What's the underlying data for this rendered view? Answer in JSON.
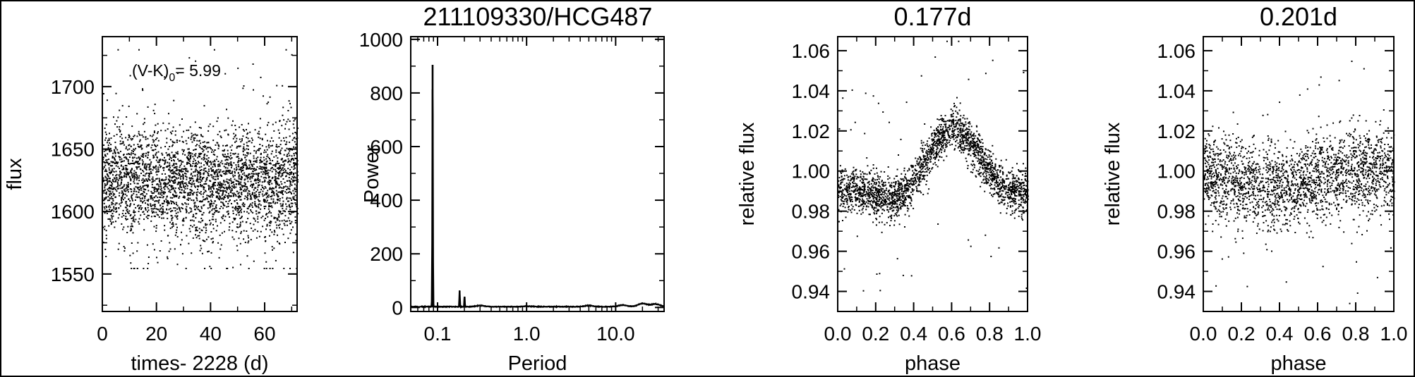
{
  "figure": {
    "title": "211109330/HCG487",
    "note_main": "(V-K)",
    "note_sub": "0",
    "note_value": "= 5.99"
  },
  "chart_data": [
    {
      "id": "lightcurve",
      "type": "scatter",
      "title": "",
      "xlabel": "times- 2228 (d)",
      "ylabel": "flux",
      "xlim": [
        0,
        72
      ],
      "ylim": [
        1520,
        1740
      ],
      "x_ticks": [
        0,
        20,
        40,
        60
      ],
      "x_tick_labels": [
        "0",
        "20",
        "40",
        "60"
      ],
      "y_ticks": [
        1550,
        1600,
        1650,
        1700
      ],
      "y_tick_labels": [
        "1550",
        "1600",
        "1650",
        "1700"
      ],
      "series": [
        {
          "n_points": 3300,
          "x_range": [
            0,
            72
          ],
          "y_center": 1625,
          "y_scatter": 22,
          "y_min": 1555,
          "y_max": 1730
        }
      ]
    },
    {
      "id": "periodogram",
      "type": "line",
      "title": "",
      "xlabel": "Period",
      "ylabel": "Power",
      "x_log": true,
      "xlim": [
        0.05,
        35
      ],
      "ylim": [
        -15,
        1010
      ],
      "x_ticks": [
        0.1,
        1.0,
        10.0
      ],
      "x_tick_labels": [
        "0.1",
        "1.0",
        "10.0"
      ],
      "y_ticks": [
        0,
        200,
        400,
        600,
        800,
        1000
      ],
      "y_tick_labels": [
        "0",
        "200",
        "400",
        "600",
        "800",
        "1000"
      ],
      "series": [
        {
          "peaks": [
            {
              "x": 0.088,
              "y": 905
            },
            {
              "x": 0.177,
              "y": 62
            },
            {
              "x": 0.201,
              "y": 40
            },
            {
              "x": 0.3,
              "y": 4
            },
            {
              "x": 1.0,
              "y": 2
            },
            {
              "x": 5.0,
              "y": 4
            },
            {
              "x": 12.0,
              "y": 6
            },
            {
              "x": 20.0,
              "y": 12
            },
            {
              "x": 28.0,
              "y": 10
            }
          ]
        }
      ]
    },
    {
      "id": "phase1",
      "type": "scatter",
      "title": "0.177d",
      "xlabel": "phase",
      "ylabel": "relative flux",
      "xlim": [
        0,
        1
      ],
      "ylim": [
        0.93,
        1.067
      ],
      "x_ticks": [
        0.0,
        0.2,
        0.4,
        0.6,
        0.8,
        1.0
      ],
      "x_tick_labels": [
        "0.0",
        "0.2",
        "0.4",
        "0.6",
        "0.8",
        "1.0"
      ],
      "y_ticks": [
        0.94,
        0.96,
        0.98,
        1.0,
        1.02,
        1.04,
        1.06
      ],
      "y_tick_labels": [
        "0.94",
        "0.96",
        "0.98",
        "1.00",
        "1.02",
        "1.04",
        "1.06"
      ],
      "series": [
        {
          "n_points": 2300,
          "model": "rotational modulation",
          "mean": 0.999,
          "amplitude": 0.02,
          "min_phase": 0.35,
          "max_phase": 0.65,
          "y_scatter": 0.0055
        }
      ]
    },
    {
      "id": "phase2",
      "type": "scatter",
      "title": "0.201d",
      "xlabel": "phase",
      "ylabel": "relative flux",
      "xlim": [
        0,
        1
      ],
      "ylim": [
        0.93,
        1.067
      ],
      "x_ticks": [
        0.0,
        0.2,
        0.4,
        0.6,
        0.8,
        1.0
      ],
      "x_tick_labels": [
        "0.0",
        "0.2",
        "0.4",
        "0.6",
        "0.8",
        "1.0"
      ],
      "y_ticks": [
        0.94,
        0.96,
        0.98,
        1.0,
        1.02,
        1.04,
        1.06
      ],
      "y_tick_labels": [
        "0.94",
        "0.96",
        "0.98",
        "1.00",
        "1.02",
        "1.04",
        "1.06"
      ],
      "series": [
        {
          "n_points": 2300,
          "model": "flat",
          "mean": 0.997,
          "amplitude": 0.004,
          "y_scatter": 0.0105
        }
      ]
    }
  ]
}
